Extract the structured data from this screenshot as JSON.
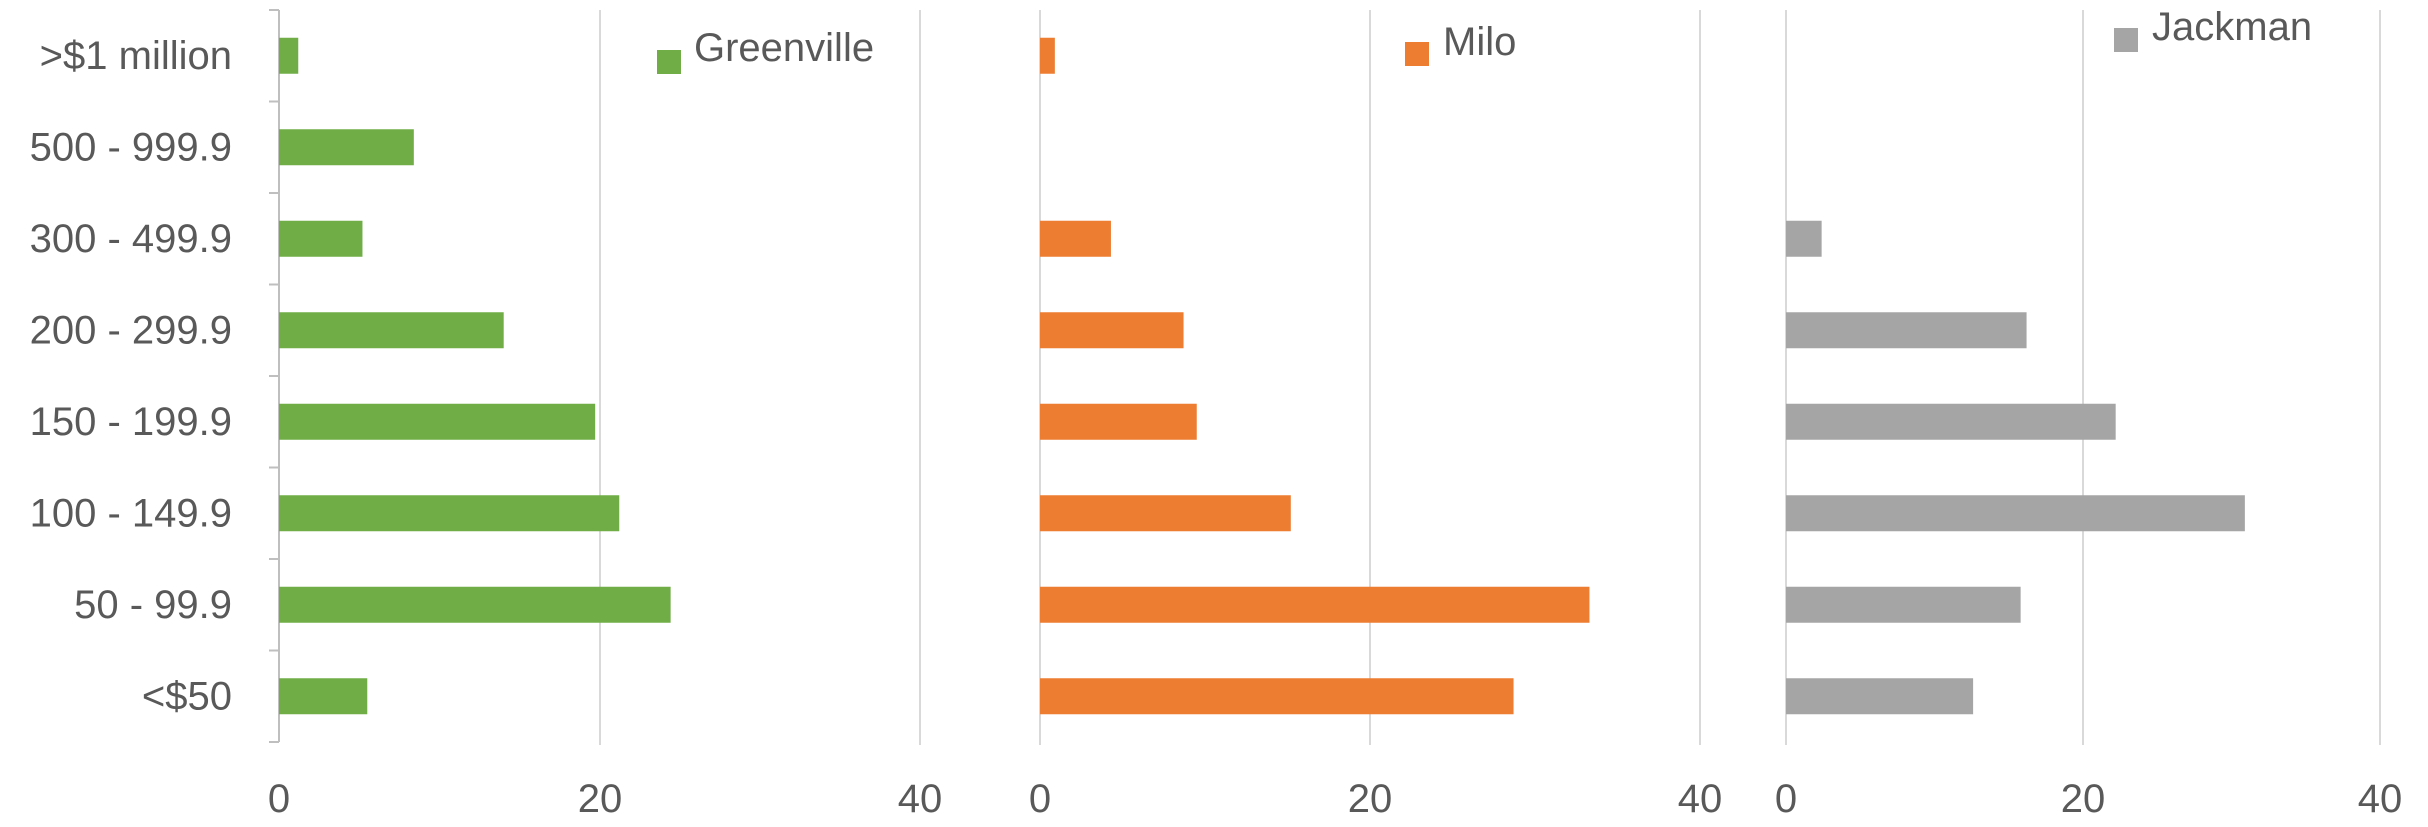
{
  "colors": {
    "gridline": "#d9d9d9",
    "axis": "#bfbfbf",
    "text": "#595959"
  },
  "chart_data": [
    {
      "type": "bar",
      "orientation": "horizontal",
      "categories": [
        ">$1 million",
        "500 - 999.9",
        "300 - 499.9",
        "200 - 299.9",
        "150 - 199.9",
        "100 - 149.9",
        "50 - 99.9",
        "<$50"
      ],
      "series": [
        {
          "name": "Greenville",
          "color": "#70ad47",
          "values": [
            1.2,
            8.4,
            5.2,
            14.0,
            19.7,
            21.2,
            24.4,
            5.5
          ]
        }
      ],
      "xlim": [
        0,
        40
      ],
      "x_ticks": [
        "0",
        "20",
        "40"
      ],
      "grid": true,
      "legend": "top-right"
    },
    {
      "type": "bar",
      "orientation": "horizontal",
      "categories": [
        ">$1 million",
        "500 - 999.9",
        "300 - 499.9",
        "200 - 299.9",
        "150 - 199.9",
        "100 - 149.9",
        "50 - 99.9",
        "<$50"
      ],
      "series": [
        {
          "name": "Milo",
          "color": "#ed7d31",
          "values": [
            0.9,
            0,
            4.3,
            8.7,
            9.5,
            15.2,
            33.3,
            28.7
          ]
        }
      ],
      "xlim": [
        0,
        40
      ],
      "x_ticks": [
        "0",
        "20",
        "40"
      ],
      "grid": true,
      "legend": "top-right"
    },
    {
      "type": "bar",
      "orientation": "horizontal",
      "categories": [
        ">$1 million",
        "500 - 999.9",
        "300 - 499.9",
        "200 - 299.9",
        "150 - 199.9",
        "100 - 149.9",
        "50 - 99.9",
        "<$50"
      ],
      "series": [
        {
          "name": "Jackman",
          "color": "#a5a5a5",
          "values": [
            0,
            0,
            2.4,
            16.2,
            22.2,
            30.9,
            15.8,
            12.6
          ]
        }
      ],
      "xlim": [
        0,
        40
      ],
      "x_ticks": [
        "0",
        "20",
        "40"
      ],
      "grid": true,
      "legend": "top-right"
    }
  ]
}
